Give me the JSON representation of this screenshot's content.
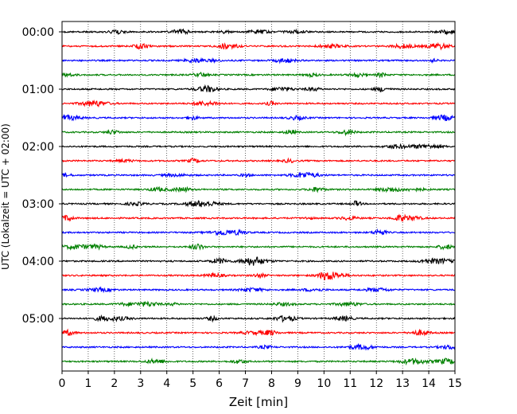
{
  "chart_data": {
    "type": "line",
    "title": "",
    "xlabel": "Zeit  [min]",
    "ylabel": "UTC (Lokalzeit = UTC + 02:00)",
    "xlim": [
      0,
      15
    ],
    "x_ticks": [
      "0",
      "1",
      "2",
      "3",
      "4",
      "5",
      "6",
      "7",
      "8",
      "9",
      "10",
      "11",
      "12",
      "13",
      "14",
      "15"
    ],
    "y_tick_labels": [
      "00:00",
      "01:00",
      "02:00",
      "03:00",
      "04:00",
      "05:00"
    ],
    "row_interval_minutes": 15,
    "rows": 24,
    "row_colors": [
      "#000000",
      "#ff0000",
      "#0000ff",
      "#008000"
    ],
    "grid": "vertical dotted"
  }
}
